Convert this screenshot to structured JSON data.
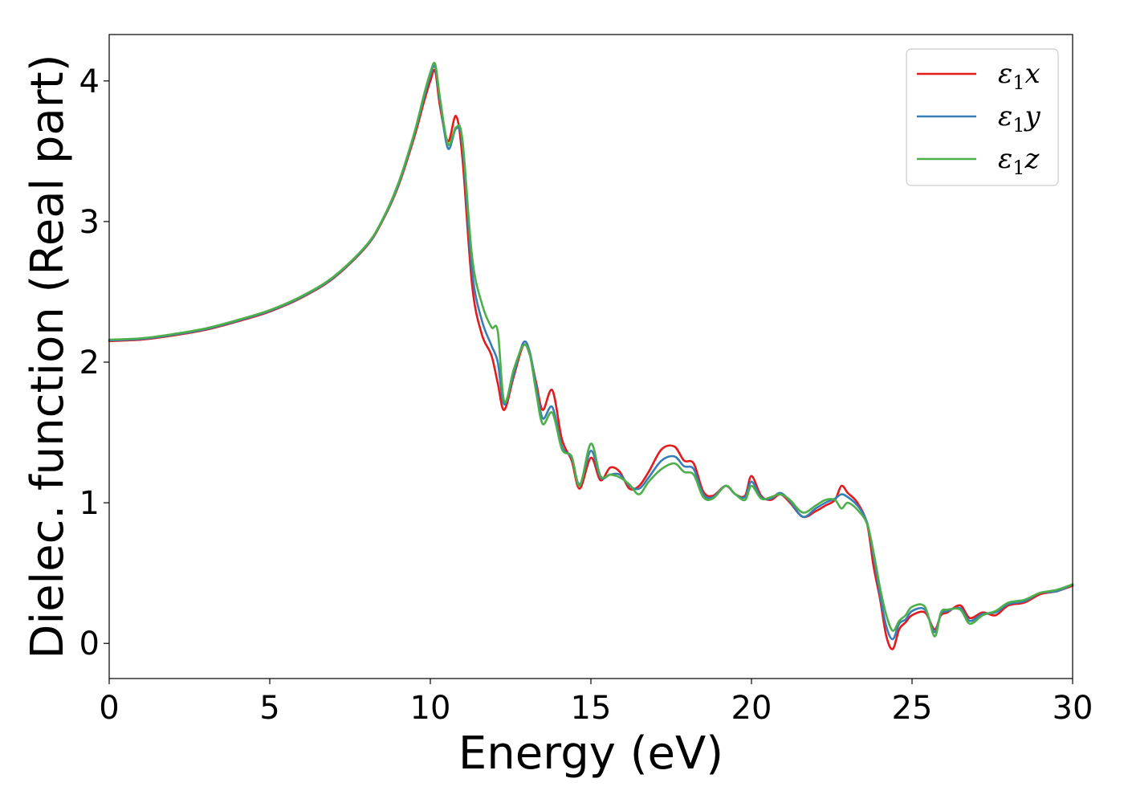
{
  "chart_data": {
    "type": "line",
    "title": "",
    "xlabel": "Energy (eV)",
    "ylabel": "Dielec. function (Real part)",
    "xlim": [
      0,
      30
    ],
    "ylim": [
      -0.25,
      4.33
    ],
    "xticks": [
      0,
      5,
      10,
      15,
      20,
      25,
      30
    ],
    "yticks": [
      0,
      1,
      2,
      3,
      4
    ],
    "grid": false,
    "legend_position": "top-right",
    "series": [
      {
        "name": "ε₁x",
        "legend": {
          "base": "ε",
          "sub": "1",
          "var": "x"
        },
        "color": "#e41a1c",
        "x": [
          0,
          1,
          2,
          3,
          4,
          5,
          6,
          7,
          8,
          8.5,
          9,
          9.5,
          9.8,
          10.0,
          10.15,
          10.3,
          10.55,
          10.8,
          11.0,
          11.3,
          11.6,
          11.9,
          12.1,
          12.3,
          12.6,
          12.9,
          13.1,
          13.3,
          13.5,
          13.8,
          14.1,
          14.4,
          14.65,
          15.0,
          15.3,
          15.6,
          15.9,
          16.2,
          16.5,
          16.8,
          17.2,
          17.6,
          17.9,
          18.2,
          18.5,
          18.8,
          19.2,
          19.5,
          19.8,
          20.0,
          20.3,
          20.6,
          20.9,
          21.2,
          21.6,
          22.0,
          22.3,
          22.6,
          22.8,
          23.0,
          23.3,
          23.6,
          23.8,
          24.0,
          24.2,
          24.4,
          24.6,
          24.8,
          25.0,
          25.4,
          25.7,
          25.9,
          26.1,
          26.5,
          26.8,
          27.2,
          27.6,
          28.0,
          28.5,
          29.0,
          29.5,
          30.0
        ],
        "values": [
          2.15,
          2.16,
          2.19,
          2.23,
          2.29,
          2.36,
          2.46,
          2.6,
          2.82,
          3.0,
          3.25,
          3.6,
          3.85,
          4.0,
          4.07,
          3.82,
          3.57,
          3.75,
          3.45,
          2.55,
          2.2,
          2.05,
          1.85,
          1.66,
          1.9,
          2.12,
          2.05,
          1.85,
          1.66,
          1.8,
          1.45,
          1.3,
          1.1,
          1.32,
          1.16,
          1.25,
          1.22,
          1.1,
          1.12,
          1.22,
          1.38,
          1.4,
          1.3,
          1.28,
          1.08,
          1.05,
          1.12,
          1.06,
          1.05,
          1.19,
          1.05,
          1.02,
          1.06,
          1.0,
          0.9,
          0.94,
          0.98,
          1.02,
          1.12,
          1.07,
          1.0,
          0.85,
          0.55,
          0.32,
          0.05,
          -0.04,
          0.1,
          0.15,
          0.2,
          0.22,
          0.1,
          0.2,
          0.22,
          0.27,
          0.18,
          0.22,
          0.2,
          0.27,
          0.29,
          0.35,
          0.37,
          0.41
        ]
      },
      {
        "name": "ε₁y",
        "legend": {
          "base": "ε",
          "sub": "1",
          "var": "y"
        },
        "color": "#377eb8",
        "x": [
          0,
          1,
          2,
          3,
          4,
          5,
          6,
          7,
          8,
          8.5,
          9,
          9.5,
          9.8,
          10.0,
          10.15,
          10.3,
          10.55,
          10.8,
          11.0,
          11.3,
          11.6,
          11.9,
          12.1,
          12.3,
          12.6,
          12.9,
          13.1,
          13.3,
          13.5,
          13.8,
          14.1,
          14.4,
          14.65,
          15.0,
          15.3,
          15.6,
          15.9,
          16.2,
          16.5,
          16.8,
          17.2,
          17.6,
          17.9,
          18.2,
          18.5,
          18.8,
          19.2,
          19.5,
          19.8,
          20.0,
          20.3,
          20.6,
          20.9,
          21.2,
          21.6,
          22.0,
          22.3,
          22.6,
          22.8,
          23.0,
          23.3,
          23.6,
          23.8,
          24.0,
          24.2,
          24.4,
          24.6,
          24.8,
          25.0,
          25.4,
          25.7,
          25.9,
          26.1,
          26.5,
          26.8,
          27.2,
          27.6,
          28.0,
          28.5,
          29.0,
          29.5,
          30.0
        ],
        "values": [
          2.155,
          2.165,
          2.195,
          2.235,
          2.295,
          2.365,
          2.465,
          2.605,
          2.825,
          3.005,
          3.26,
          3.62,
          3.88,
          4.04,
          4.1,
          3.86,
          3.52,
          3.66,
          3.55,
          2.65,
          2.3,
          2.12,
          2.0,
          1.7,
          1.92,
          2.14,
          2.07,
          1.82,
          1.6,
          1.68,
          1.4,
          1.32,
          1.13,
          1.37,
          1.18,
          1.2,
          1.2,
          1.12,
          1.1,
          1.18,
          1.3,
          1.33,
          1.26,
          1.24,
          1.06,
          1.04,
          1.12,
          1.06,
          1.04,
          1.15,
          1.04,
          1.03,
          1.07,
          1.01,
          0.9,
          0.96,
          1.0,
          1.03,
          1.06,
          1.04,
          0.98,
          0.86,
          0.62,
          0.35,
          0.12,
          0.03,
          0.14,
          0.17,
          0.23,
          0.24,
          0.08,
          0.21,
          0.23,
          0.25,
          0.16,
          0.21,
          0.22,
          0.28,
          0.3,
          0.36,
          0.37,
          0.42
        ]
      },
      {
        "name": "ε₁z",
        "legend": {
          "base": "ε",
          "sub": "1",
          "var": "z"
        },
        "color": "#4daf4a",
        "x": [
          0,
          1,
          2,
          3,
          4,
          5,
          6,
          7,
          8,
          8.5,
          9,
          9.5,
          9.8,
          10.0,
          10.15,
          10.3,
          10.55,
          10.8,
          11.0,
          11.3,
          11.6,
          11.9,
          12.1,
          12.3,
          12.6,
          12.9,
          13.1,
          13.3,
          13.5,
          13.8,
          14.1,
          14.4,
          14.65,
          15.0,
          15.3,
          15.6,
          15.9,
          16.2,
          16.5,
          16.8,
          17.2,
          17.6,
          17.9,
          18.2,
          18.5,
          18.8,
          19.2,
          19.5,
          19.8,
          20.0,
          20.3,
          20.6,
          20.9,
          21.2,
          21.6,
          22.0,
          22.3,
          22.6,
          22.8,
          23.0,
          23.3,
          23.6,
          23.8,
          24.0,
          24.2,
          24.4,
          24.6,
          24.8,
          25.0,
          25.4,
          25.7,
          25.9,
          26.1,
          26.5,
          26.8,
          27.2,
          27.6,
          28.0,
          28.5,
          29.0,
          29.5,
          30.0
        ],
        "values": [
          2.16,
          2.17,
          2.2,
          2.24,
          2.3,
          2.37,
          2.47,
          2.61,
          2.83,
          3.01,
          3.27,
          3.63,
          3.9,
          4.06,
          4.12,
          3.88,
          3.55,
          3.67,
          3.58,
          2.75,
          2.42,
          2.25,
          2.22,
          1.72,
          1.95,
          2.12,
          2.05,
          1.78,
          1.56,
          1.64,
          1.38,
          1.33,
          1.12,
          1.42,
          1.19,
          1.2,
          1.18,
          1.13,
          1.06,
          1.15,
          1.24,
          1.28,
          1.22,
          1.2,
          1.04,
          1.03,
          1.12,
          1.06,
          1.02,
          1.12,
          1.03,
          1.04,
          1.06,
          1.02,
          0.93,
          0.98,
          1.02,
          1.02,
          0.96,
          1.0,
          0.95,
          0.85,
          0.65,
          0.4,
          0.2,
          0.09,
          0.16,
          0.2,
          0.26,
          0.26,
          0.05,
          0.22,
          0.24,
          0.24,
          0.14,
          0.2,
          0.23,
          0.29,
          0.31,
          0.36,
          0.38,
          0.42
        ]
      }
    ]
  }
}
